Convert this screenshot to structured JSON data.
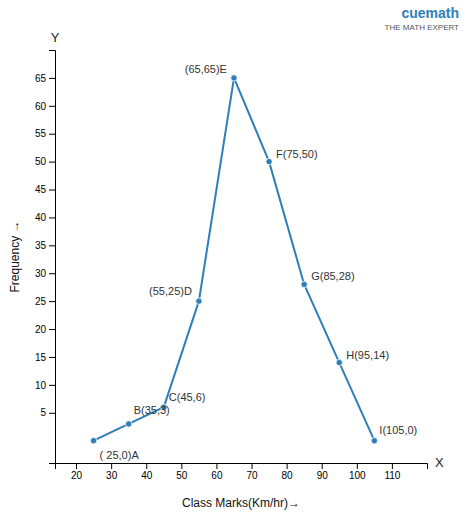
{
  "chart_data": {
    "type": "line",
    "x": [
      25,
      35,
      45,
      55,
      65,
      75,
      85,
      95,
      105
    ],
    "values": [
      0,
      3,
      6,
      25,
      65,
      50,
      28,
      14,
      0
    ],
    "data_labels": true,
    "value_labels": [
      "( 25,0)A",
      "B(35,3)",
      "C(45,6)",
      "(55,25)D",
      "(65,65)E",
      "F(75,50)",
      "G(85,28)",
      "H(95,14)",
      "I(105,0)"
    ],
    "color": "#2e7fb8",
    "marker": "circle",
    "x_label": "Class Marks(Km/hr)→",
    "y_label": "Frequency →",
    "xlim": [
      14,
      120
    ],
    "ylim": [
      -4,
      70
    ],
    "xticks": [
      20,
      30,
      40,
      50,
      60,
      70,
      80,
      90,
      100,
      110
    ],
    "yticks": [
      5,
      10,
      15,
      20,
      25,
      30,
      35,
      40,
      45,
      50,
      55,
      60,
      65
    ],
    "grid": false,
    "annotations": [
      "Y",
      "X",
      "cuemath",
      "THE MATH EXPERT"
    ]
  }
}
